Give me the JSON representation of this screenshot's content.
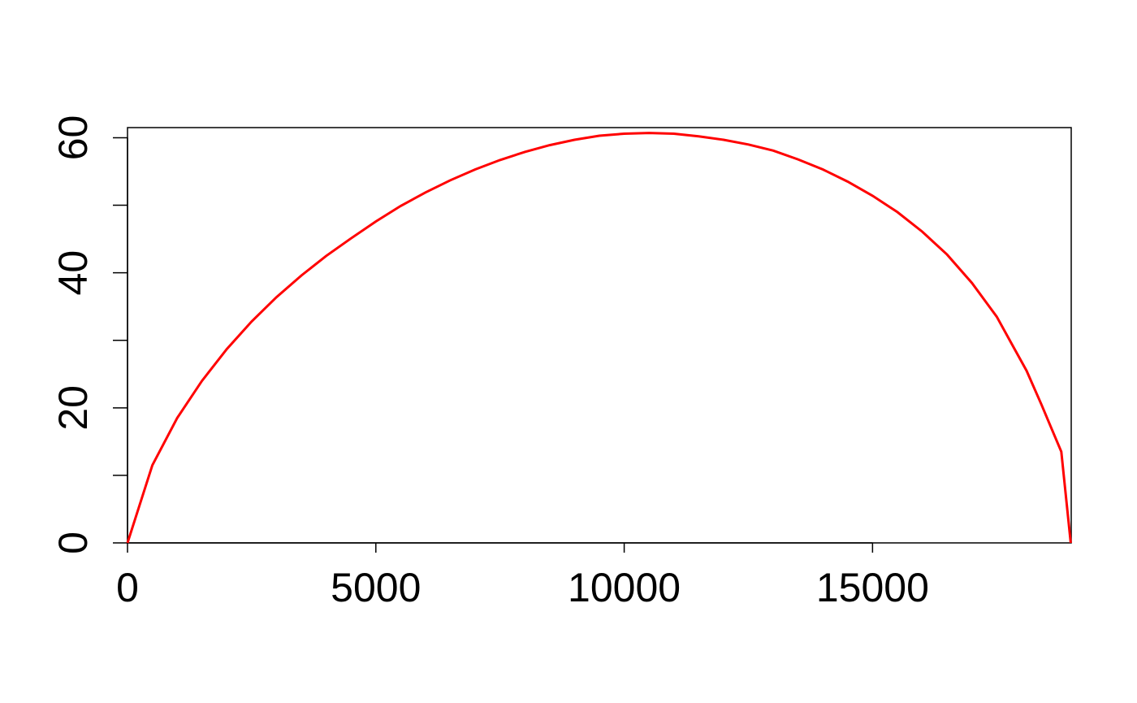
{
  "chart_data": {
    "type": "line",
    "title": "",
    "xlabel": "",
    "ylabel": "",
    "xlim": [
      0,
      19000
    ],
    "ylim": [
      0,
      61.5
    ],
    "x_ticks": [
      0,
      5000,
      10000,
      15000
    ],
    "x_tick_labels": [
      "0",
      "5000",
      "10000",
      "15000"
    ],
    "y_ticks": [
      0,
      10,
      20,
      30,
      40,
      50,
      60
    ],
    "y_tick_labels": [
      "0",
      "",
      "20",
      "",
      "40",
      "",
      "60"
    ],
    "grid": false,
    "legend": "none",
    "series": [
      {
        "color": "#ff0000",
        "x": [
          0,
          500,
          1000,
          1500,
          2000,
          2500,
          3000,
          3500,
          4000,
          4500,
          5000,
          5500,
          6000,
          6500,
          7000,
          7500,
          8000,
          8500,
          9000,
          9500,
          10000,
          10500,
          11000,
          11500,
          12000,
          12500,
          13000,
          13500,
          14000,
          14500,
          15000,
          15500,
          16000,
          16500,
          17000,
          17500,
          17800,
          18100,
          18400,
          18600,
          18800,
          18990
        ],
        "y": [
          0,
          11.5,
          18.5,
          24,
          28.7,
          32.8,
          36.4,
          39.6,
          42.5,
          45.1,
          47.6,
          49.9,
          51.9,
          53.7,
          55.3,
          56.7,
          57.9,
          58.9,
          59.7,
          60.3,
          60.6,
          60.7,
          60.6,
          60.2,
          59.7,
          59.0,
          58.1,
          56.8,
          55.3,
          53.5,
          51.4,
          49.0,
          46.1,
          42.7,
          38.5,
          33.5,
          29.5,
          25.5,
          20.5,
          17.0,
          13.5,
          0
        ]
      }
    ]
  }
}
